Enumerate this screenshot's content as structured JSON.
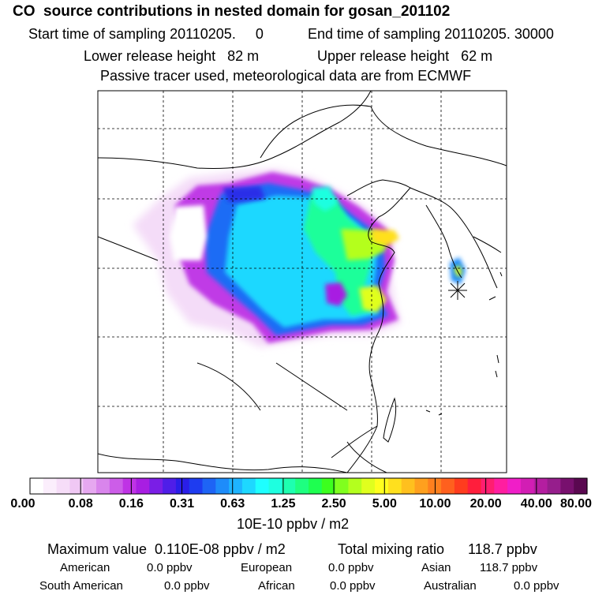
{
  "header": {
    "title": "CO  source contributions in nested domain for gosan_201102",
    "start_label": "Start time of sampling 20110205.     0",
    "end_label": "End time of sampling 20110205. 30000",
    "lower_release": "Lower release height   82 m",
    "upper_release": "Upper release height   62 m",
    "tracer_note": "Passive tracer used, meteorological data are from ECMWF"
  },
  "colorbar": {
    "ticks": [
      "0.00",
      "0.08",
      "0.16",
      "0.31",
      "0.63",
      "1.25",
      "2.50",
      "5.00",
      "10.00",
      "20.00",
      "40.00",
      "80.00"
    ],
    "units": "10E-10 ppbv / m2",
    "colors": [
      "#ffffff",
      "#fbeefc",
      "#f6ddf8",
      "#f0c8f4",
      "#e6a8f0",
      "#d985ec",
      "#cc5de8",
      "#bf33e5",
      "#a81ee2",
      "#7a1ee6",
      "#4f1ee8",
      "#2a1ee8",
      "#1e3cf0",
      "#1e64f5",
      "#1e8cfa",
      "#1eb4ff",
      "#1ed8ff",
      "#1effff",
      "#1effe0",
      "#1effb0",
      "#1eff80",
      "#1eff50",
      "#3cff1e",
      "#80ff1e",
      "#b4ff1e",
      "#e0ff1e",
      "#ffff1e",
      "#ffe01e",
      "#ffc01e",
      "#ffa01e",
      "#ff801e",
      "#ff601e",
      "#ff3c1e",
      "#ff1e3c",
      "#ff1e70",
      "#ff1ea0",
      "#f01ec8",
      "#d21eb4",
      "#b41ea0",
      "#961e8c",
      "#78106e",
      "#5a0850"
    ]
  },
  "stats": {
    "max_value": "Maximum value  0.110E-08 ppbv / m2",
    "total_mixing": "Total mixing ratio      118.7 ppbv"
  },
  "sources": {
    "american": {
      "label": "American",
      "value": "0.0 ppbv"
    },
    "european": {
      "label": "European",
      "value": "0.0 ppbv"
    },
    "asian": {
      "label": "Asian",
      "value": "118.7 ppbv"
    },
    "south_american": {
      "label": "South American",
      "value": "0.0 ppbv"
    },
    "african": {
      "label": "African",
      "value": "0.0 ppbv"
    },
    "australian": {
      "label": "Australian",
      "value": "0.0 ppbv"
    }
  },
  "receptor_marker": "asterisk-icon"
}
